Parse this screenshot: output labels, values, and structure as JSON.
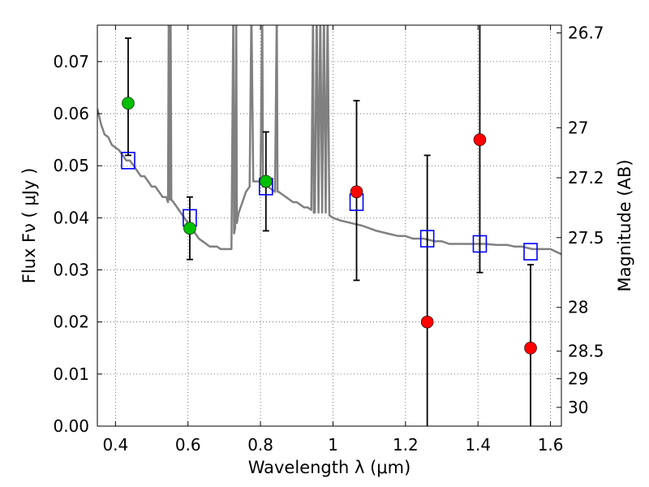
{
  "chart_data": {
    "type": "scatter",
    "xlabel": "Wavelength  λ (μm)",
    "ylabel": "Flux  Fν  ( μJy )",
    "ylabel_right": "Magnitude (AB)",
    "xlim": [
      0.35,
      1.63
    ],
    "ylim": [
      0.0,
      0.077
    ],
    "grid": true,
    "x_ticks": [
      0.4,
      0.6,
      0.8,
      1.0,
      1.2,
      1.4,
      1.6
    ],
    "x_tick_labels": [
      "0.4",
      "0.6",
      "0.8",
      "1",
      "1.2",
      "1.4",
      "1.6"
    ],
    "y_ticks": [
      0.0,
      0.01,
      0.02,
      0.03,
      0.04,
      0.05,
      0.06,
      0.07
    ],
    "y_tick_labels": [
      "0.00",
      "0.01",
      "0.02",
      "0.03",
      "0.04",
      "0.05",
      "0.06",
      "0.07"
    ],
    "right_ticks": [
      {
        "label": "26.7",
        "flux": 0.0755
      },
      {
        "label": "27",
        "flux": 0.0573
      },
      {
        "label": "27.2",
        "flux": 0.0477
      },
      {
        "label": "27.5",
        "flux": 0.0362
      },
      {
        "label": "28",
        "flux": 0.0228
      },
      {
        "label": "28.5",
        "flux": 0.0144
      },
      {
        "label": "29",
        "flux": 0.0091
      },
      {
        "label": "30",
        "flux": 0.0036
      }
    ],
    "series": [
      {
        "marker": "line",
        "color": "#808080",
        "x": [
          0.35,
          0.36,
          0.37,
          0.38,
          0.39,
          0.4,
          0.41,
          0.42,
          0.43,
          0.44,
          0.45,
          0.46,
          0.47,
          0.48,
          0.49,
          0.5,
          0.51,
          0.52,
          0.53,
          0.54,
          0.545,
          0.547,
          0.548,
          0.55,
          0.552,
          0.554,
          0.56,
          0.57,
          0.58,
          0.59,
          0.6,
          0.61,
          0.62,
          0.63,
          0.64,
          0.65,
          0.66,
          0.67,
          0.68,
          0.69,
          0.7,
          0.71,
          0.72,
          0.725,
          0.727,
          0.73,
          0.733,
          0.735,
          0.74,
          0.75,
          0.76,
          0.77,
          0.775,
          0.78,
          0.79,
          0.8,
          0.805,
          0.807,
          0.81,
          0.82,
          0.83,
          0.84,
          0.845,
          0.847,
          0.85,
          0.86,
          0.87,
          0.88,
          0.89,
          0.9,
          0.91,
          0.92,
          0.93,
          0.94,
          0.945,
          0.947,
          0.95,
          0.955,
          0.96,
          0.965,
          0.97,
          0.975,
          0.98,
          0.985,
          0.99,
          1.0,
          1.02,
          1.05,
          1.08,
          1.1,
          1.12,
          1.15,
          1.18,
          1.2,
          1.22,
          1.25,
          1.28,
          1.3,
          1.32,
          1.35,
          1.38,
          1.4,
          1.42,
          1.45,
          1.48,
          1.5,
          1.52,
          1.55,
          1.58,
          1.6,
          1.63
        ],
        "y": [
          0.061,
          0.058,
          0.056,
          0.0555,
          0.054,
          0.0535,
          0.053,
          0.052,
          0.051,
          0.051,
          0.05,
          0.049,
          0.048,
          0.048,
          0.047,
          0.046,
          0.046,
          0.045,
          0.044,
          0.044,
          0.043,
          0.08,
          0.044,
          0.0435,
          0.08,
          0.0435,
          0.043,
          0.042,
          0.041,
          0.04,
          0.039,
          0.038,
          0.037,
          0.036,
          0.0355,
          0.035,
          0.0345,
          0.0345,
          0.0345,
          0.034,
          0.034,
          0.034,
          0.034,
          0.08,
          0.037,
          0.038,
          0.08,
          0.039,
          0.041,
          0.043,
          0.045,
          0.046,
          0.08,
          0.047,
          0.047,
          0.047,
          0.08,
          0.046,
          0.046,
          0.046,
          0.0455,
          0.045,
          0.08,
          0.045,
          0.045,
          0.0445,
          0.044,
          0.0435,
          0.043,
          0.043,
          0.0425,
          0.042,
          0.042,
          0.0415,
          0.08,
          0.041,
          0.041,
          0.08,
          0.041,
          0.08,
          0.041,
          0.08,
          0.041,
          0.08,
          0.0405,
          0.04,
          0.0395,
          0.039,
          0.0385,
          0.038,
          0.0375,
          0.037,
          0.0365,
          0.0365,
          0.036,
          0.036,
          0.0355,
          0.0355,
          0.035,
          0.035,
          0.035,
          0.035,
          0.035,
          0.0348,
          0.0348,
          0.0345,
          0.0345,
          0.034,
          0.034,
          0.034,
          0.033
        ]
      },
      {
        "marker": "square",
        "color": "#0000ff",
        "x": [
          0.435,
          0.605,
          0.815,
          1.065,
          1.26,
          1.405,
          1.545
        ],
        "y": [
          0.051,
          0.04,
          0.046,
          0.043,
          0.036,
          0.035,
          0.0335
        ]
      },
      {
        "marker": "circle",
        "color": "#00bf00",
        "x": [
          0.435,
          0.605,
          0.815
        ],
        "y": [
          0.062,
          0.038,
          0.047
        ]
      },
      {
        "marker": "circle",
        "color": "#ff0000",
        "x": [
          1.065,
          1.26,
          1.405,
          1.545
        ],
        "y": [
          0.045,
          0.02,
          0.055,
          0.015
        ]
      }
    ],
    "error_bars": {
      "color": "#000000",
      "x": [
        0.435,
        0.605,
        0.815,
        1.065,
        1.26,
        1.405,
        1.545
      ],
      "y_low": [
        0.052,
        0.032,
        0.0375,
        0.028,
        0.0,
        0.0295,
        0.0
      ],
      "y_high": [
        0.0745,
        0.044,
        0.0565,
        0.0625,
        0.052,
        0.08,
        0.031
      ]
    }
  }
}
